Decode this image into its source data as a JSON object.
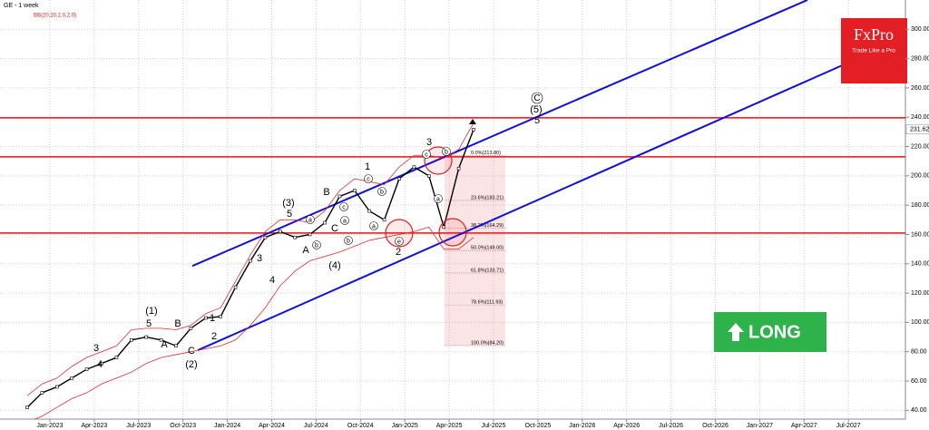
{
  "chart_data": {
    "type": "line",
    "title": "GE - 1 week",
    "indicator": "BB(20,20,2,0,2.0)",
    "x_labels": [
      "Jan-2023",
      "Apr-2023",
      "Jul-2023",
      "Oct-2023",
      "Jan-2024",
      "Apr-2024",
      "Jul-2024",
      "Oct-2024",
      "Jan-2025",
      "Apr-2025",
      "Jul-2025",
      "Oct-2025",
      "Jan-2026",
      "Apr-2026",
      "Jul-2026",
      "Oct-2026",
      "Jan-2027",
      "Apr-2027",
      "Jul-2027"
    ],
    "ylim": [
      34,
      320
    ],
    "yticks": [
      {
        "value": 40,
        "label": "40.00"
      },
      {
        "value": 60,
        "label": "60.00"
      },
      {
        "value": 80,
        "label": "80.00"
      },
      {
        "value": 100,
        "label": "100.00"
      },
      {
        "value": 120,
        "label": "120.00"
      },
      {
        "value": 140,
        "label": "140.00"
      },
      {
        "value": 160,
        "label": "160.00"
      },
      {
        "value": 180,
        "label": "180.00"
      },
      {
        "value": 200,
        "label": "200.00"
      },
      {
        "value": 220,
        "label": "220.00"
      },
      {
        "value": 240,
        "label": "240.00"
      },
      {
        "value": 260,
        "label": "260.00"
      },
      {
        "value": 280,
        "label": "280.00"
      },
      {
        "value": 300,
        "label": "300.00"
      }
    ],
    "grid": true,
    "series": [
      {
        "name": "GE",
        "color": "#000000",
        "values": [
          42,
          52,
          56,
          62,
          68,
          72,
          76,
          88,
          90,
          88,
          84,
          96,
          103,
          104,
          124,
          142,
          158,
          162,
          158,
          160,
          168,
          186,
          190,
          176,
          170,
          198,
          206,
          200,
          165,
          205,
          231.6
        ]
      },
      {
        "name": "BB upper",
        "color": "#e03030",
        "values": [
          50,
          58,
          62,
          70,
          76,
          80,
          84,
          95,
          96,
          96,
          95,
          98,
          106,
          110,
          128,
          146,
          162,
          170,
          170,
          168,
          176,
          190,
          198,
          196,
          194,
          206,
          214,
          214,
          212,
          218,
          236
        ]
      },
      {
        "name": "BB lower",
        "color": "#e03030",
        "values": [
          32,
          36,
          42,
          48,
          52,
          58,
          62,
          66,
          72,
          76,
          78,
          80,
          82,
          84,
          88,
          98,
          110,
          125,
          135,
          142,
          145,
          148,
          152,
          156,
          158,
          160,
          162,
          165,
          150,
          150,
          158
        ]
      }
    ],
    "last_price": 231.62,
    "levels": [
      239.6,
      213,
      161
    ],
    "level_color": "#ee1111",
    "channel": {
      "color": "#1010dd",
      "upper": [
        138.5,
        320
      ],
      "lower": [
        81,
        295
      ]
    },
    "fib_levels": [
      {
        "label": "0.0%(213.80)",
        "value": 213.8
      },
      {
        "label": "23.6%(183.21)",
        "value": 183.21
      },
      {
        "label": "38.2%(164.29)",
        "value": 164.29
      },
      {
        "label": "50.0%(149.00)",
        "value": 149
      },
      {
        "label": "61.8%(133.71)",
        "value": 133.71
      },
      {
        "label": "78.6%(111.93)",
        "value": 111.93
      },
      {
        "label": "100.0%(84.20)",
        "value": 84.2
      }
    ],
    "annotations": [
      "(1)",
      "5",
      "B",
      "A",
      "3",
      "4",
      "1",
      "2",
      "C",
      "(2)",
      "3",
      "4",
      "(3)",
      "5",
      "A",
      "B",
      "C",
      "(4)",
      "1",
      "2",
      "3",
      "(5)",
      "5"
    ],
    "circled_labels": [
      "C",
      "a",
      "b",
      "c",
      "b",
      "a",
      "c",
      "b",
      "a",
      "b",
      "c",
      "e",
      "a"
    ],
    "logo": {
      "name": "FxPro",
      "tagline": "Trade Like a Pro"
    },
    "signal": "LONG"
  }
}
